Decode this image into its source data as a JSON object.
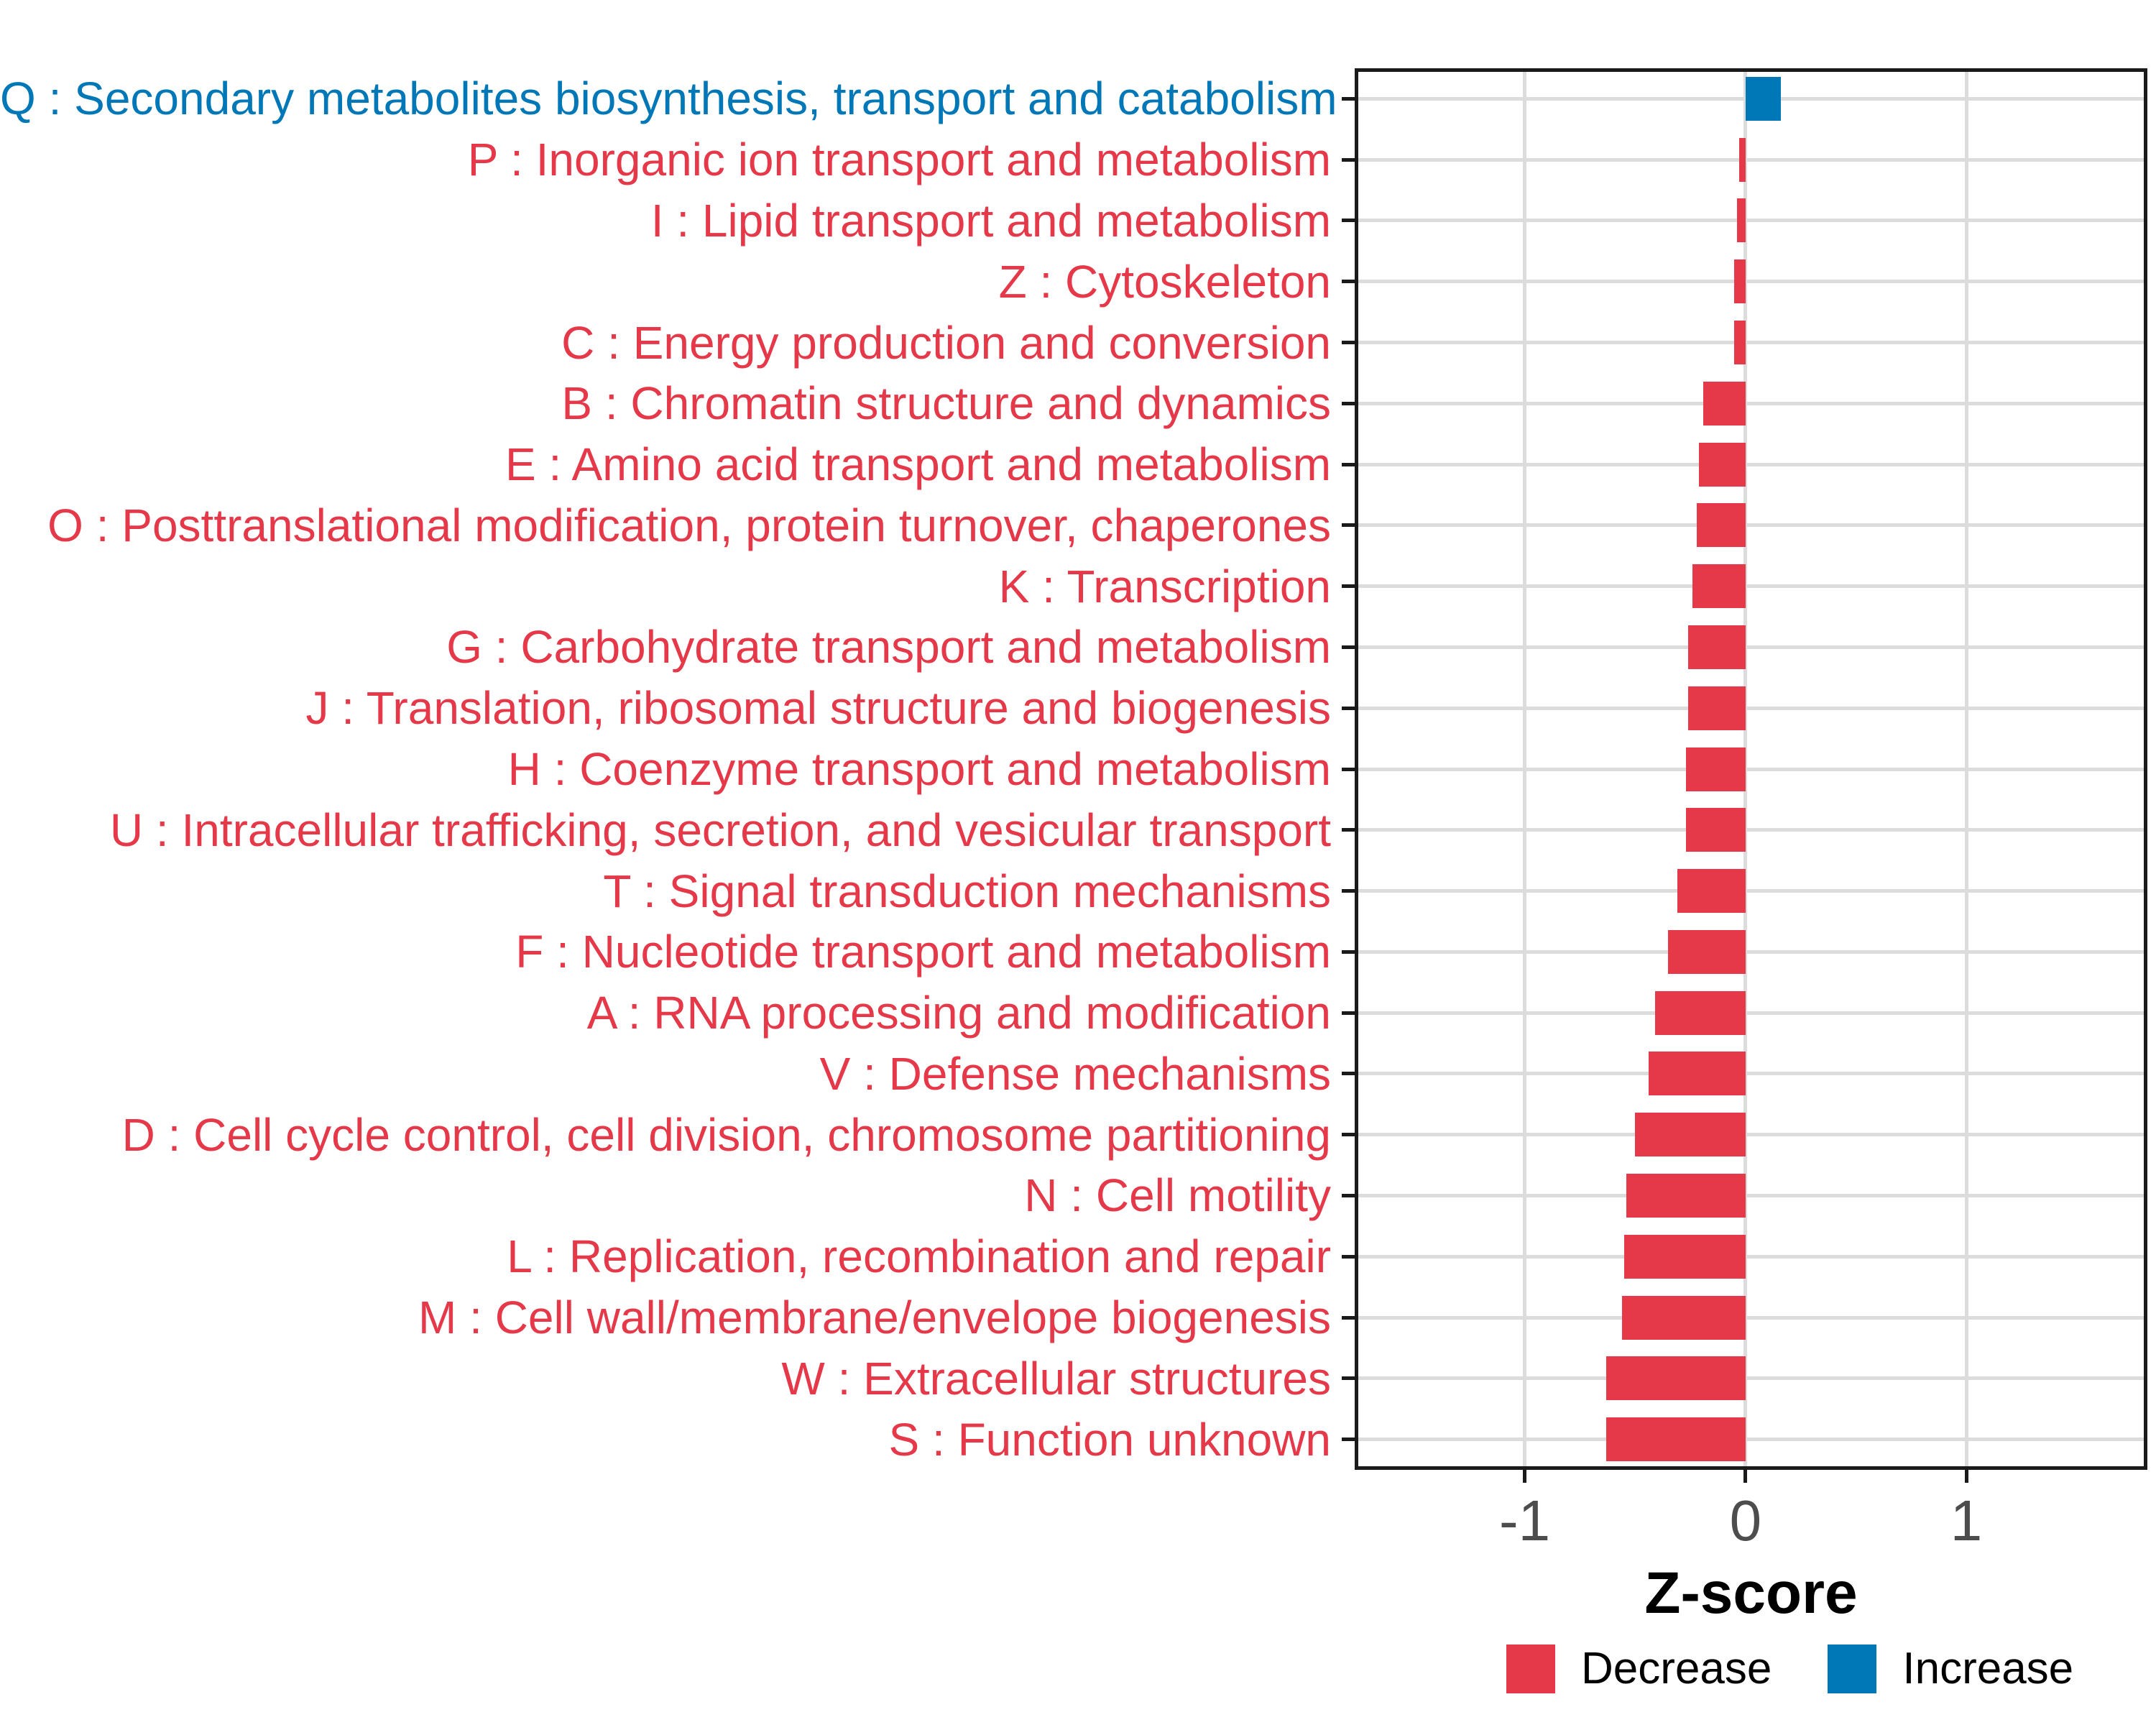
{
  "chart_data": {
    "type": "bar",
    "orientation": "horizontal",
    "title": "",
    "xlabel": "Z-score",
    "ylabel": "",
    "xlim": [
      -1.77,
      1.82
    ],
    "xticks": [
      {
        "label": "-1",
        "value": -1
      },
      {
        "label": "0",
        "value": 0
      },
      {
        "label": "1",
        "value": 1
      }
    ],
    "grid": "major-only",
    "legend_position": "bottom-right",
    "categories": [
      {
        "label": "Q : Secondary metabolites biosynthesis, transport and catabolism",
        "value": 0.16,
        "group": "Increase"
      },
      {
        "label": "P : Inorganic ion transport and metabolism",
        "value": -0.03,
        "group": "Decrease"
      },
      {
        "label": "I : Lipid transport and metabolism",
        "value": -0.04,
        "group": "Decrease"
      },
      {
        "label": "Z : Cytoskeleton",
        "value": -0.05,
        "group": "Decrease"
      },
      {
        "label": "C : Energy production and conversion",
        "value": -0.05,
        "group": "Decrease"
      },
      {
        "label": "B : Chromatin structure and dynamics",
        "value": -0.19,
        "group": "Decrease"
      },
      {
        "label": "E : Amino acid transport and metabolism",
        "value": -0.21,
        "group": "Decrease"
      },
      {
        "label": "O : Posttranslational modification, protein turnover, chaperones",
        "value": -0.22,
        "group": "Decrease"
      },
      {
        "label": "K : Transcription",
        "value": -0.24,
        "group": "Decrease"
      },
      {
        "label": "G : Carbohydrate transport and metabolism",
        "value": -0.26,
        "group": "Decrease"
      },
      {
        "label": "J : Translation, ribosomal structure and biogenesis",
        "value": -0.26,
        "group": "Decrease"
      },
      {
        "label": "H : Coenzyme transport and metabolism",
        "value": -0.27,
        "group": "Decrease"
      },
      {
        "label": "U : Intracellular trafficking, secretion, and vesicular transport",
        "value": -0.27,
        "group": "Decrease"
      },
      {
        "label": "T : Signal transduction mechanisms",
        "value": -0.31,
        "group": "Decrease"
      },
      {
        "label": "F : Nucleotide transport and metabolism",
        "value": -0.35,
        "group": "Decrease"
      },
      {
        "label": "A : RNA processing and modification",
        "value": -0.41,
        "group": "Decrease"
      },
      {
        "label": "V : Defense mechanisms",
        "value": -0.44,
        "group": "Decrease"
      },
      {
        "label": "D : Cell cycle control, cell division, chromosome partitioning",
        "value": -0.5,
        "group": "Decrease"
      },
      {
        "label": "N : Cell motility",
        "value": -0.54,
        "group": "Decrease"
      },
      {
        "label": "L : Replication, recombination and repair",
        "value": -0.55,
        "group": "Decrease"
      },
      {
        "label": "M : Cell wall/membrane/envelope biogenesis",
        "value": -0.56,
        "group": "Decrease"
      },
      {
        "label": "W : Extracellular structures",
        "value": -0.63,
        "group": "Decrease"
      },
      {
        "label": "S : Function unknown",
        "value": -0.63,
        "group": "Decrease"
      }
    ],
    "legend": {
      "entries": [
        {
          "label": "Decrease",
          "color": "#E5394A"
        },
        {
          "label": "Increase",
          "color": "#0077B6"
        }
      ]
    }
  },
  "colors": {
    "decrease": "#E5394A",
    "increase": "#0077B6",
    "grid": "#DCDCDC",
    "axis_text": "#4D4D4D",
    "panel_border": "#1A1A1A",
    "background": "#FFFFFF"
  }
}
